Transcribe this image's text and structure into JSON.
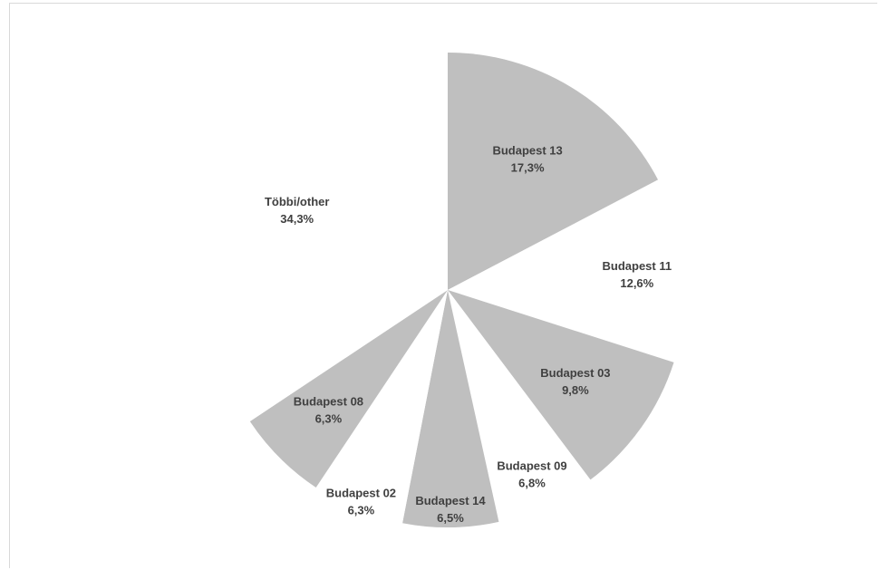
{
  "chart_data": {
    "type": "pie",
    "title": "",
    "colors": {
      "filled": "#bfbfbf",
      "empty": "#ffffff",
      "label": "#404040",
      "frame": "#d9d9d9"
    },
    "slices": [
      {
        "label": "Budapest 13",
        "value": 17.3,
        "display": "17,3%",
        "filled": true
      },
      {
        "label": "Budapest 11",
        "value": 12.6,
        "display": "12,6%",
        "filled": false
      },
      {
        "label": "Budapest 03",
        "value": 9.8,
        "display": "9,8%",
        "filled": true
      },
      {
        "label": "Budapest 09",
        "value": 6.8,
        "display": "6,8%",
        "filled": false
      },
      {
        "label": "Budapest 14",
        "value": 6.5,
        "display": "6,5%",
        "filled": true
      },
      {
        "label": "Budapest 02",
        "value": 6.3,
        "display": "6,3%",
        "filled": false
      },
      {
        "label": "Budapest 08",
        "value": 6.3,
        "display": "6,3%",
        "filled": true
      },
      {
        "label": "Többi/other",
        "value": 34.3,
        "display": "34,3%",
        "filled": false
      }
    ]
  }
}
